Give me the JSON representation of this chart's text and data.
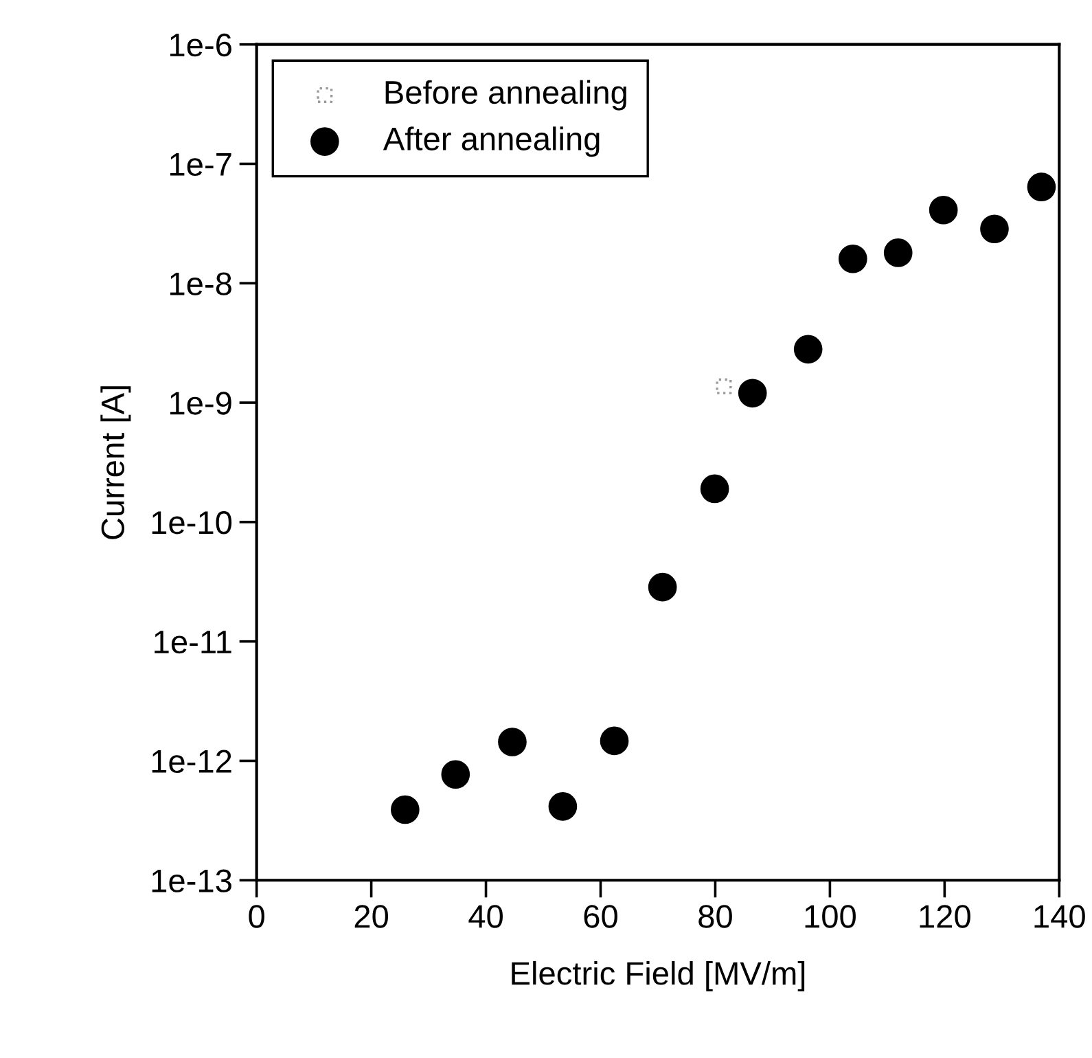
{
  "chart_data": {
    "type": "scatter",
    "xlabel": "Electric Field [MV/m]",
    "ylabel": "Current [A]",
    "log": "y",
    "xlim": [
      0,
      140
    ],
    "xticks": [
      0,
      20,
      40,
      60,
      80,
      100,
      120,
      140
    ],
    "ylim": [
      1e-13,
      1e-06
    ],
    "yticks": [
      {
        "value": 1e-13,
        "label": "1e-13"
      },
      {
        "value": 1e-12,
        "label": "1e-12"
      },
      {
        "value": 1e-11,
        "label": "1e-11"
      },
      {
        "value": 1e-10,
        "label": "1e-10"
      },
      {
        "value": 1e-09,
        "label": "1e-9"
      },
      {
        "value": 1e-08,
        "label": "1e-8"
      },
      {
        "value": 1e-07,
        "label": "1e-7"
      },
      {
        "value": 1e-06,
        "label": "1e-6"
      }
    ],
    "grid": false,
    "legend": "top left",
    "series": [
      {
        "name": "Before annealing",
        "color": "#999999",
        "marker": "square",
        "x": [
          81.5
        ],
        "values": [
          1.37e-09
        ]
      },
      {
        "name": "After annealing",
        "color": "#000000",
        "marker": "circle",
        "x": [
          25.9,
          34.7,
          44.6,
          53.4,
          62.4,
          70.8,
          79.9,
          86.5,
          96.2,
          104.0,
          111.9,
          119.8,
          128.7,
          136.9
        ],
        "values": [
          3.9e-13,
          7.7e-13,
          1.44e-12,
          4.15e-13,
          1.47e-12,
          2.85e-11,
          1.9e-10,
          1.2e-09,
          2.8e-09,
          1.6e-08,
          1.8e-08,
          4.1e-08,
          2.85e-08,
          6.4e-08
        ]
      }
    ]
  }
}
